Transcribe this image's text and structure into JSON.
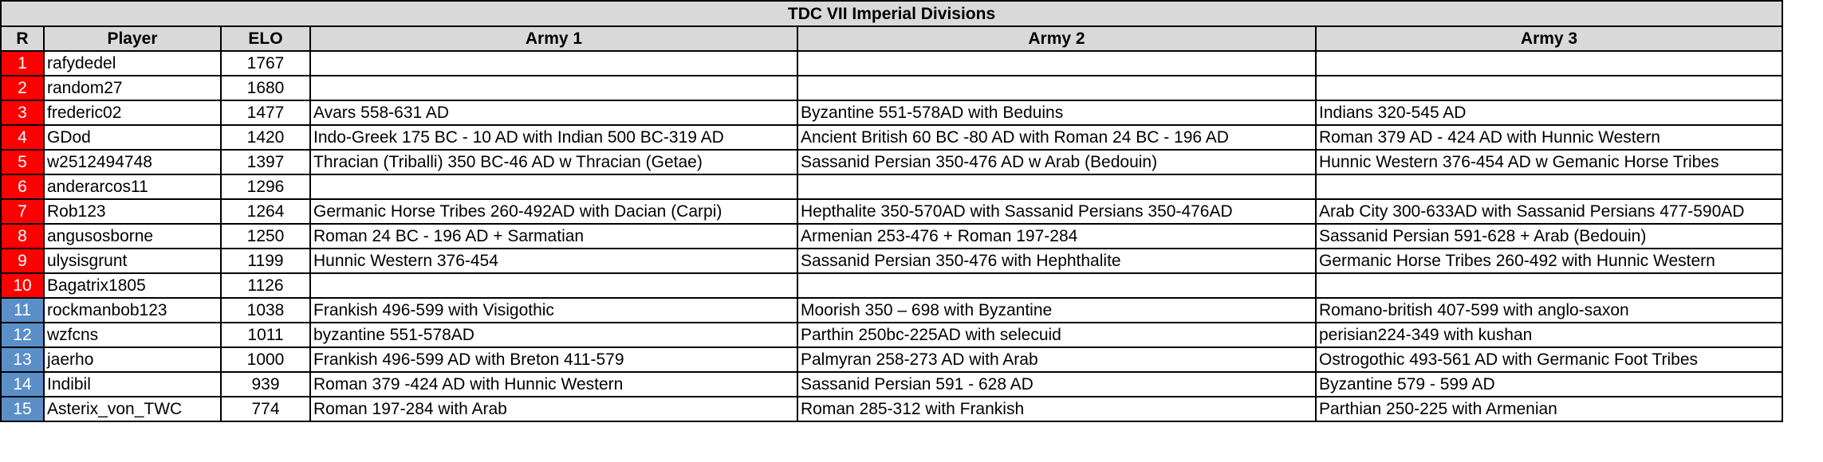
{
  "title": "TDC VII Imperial Divisions",
  "headers": {
    "rank": "R",
    "player": "Player",
    "elo": "ELO",
    "army1": "Army 1",
    "army2": "Army 2",
    "army3": "Army 3"
  },
  "colors": {
    "header_bg": "#d9d9d9",
    "rank_red": "#ff0000",
    "rank_blue": "#5b8fc8"
  },
  "rows": [
    {
      "rank": "1",
      "tier": "red",
      "player": "rafydedel",
      "elo": "1767",
      "army1": "",
      "army2": "",
      "army3": ""
    },
    {
      "rank": "2",
      "tier": "red",
      "player": "random27",
      "elo": "1680",
      "army1": "",
      "army2": "",
      "army3": ""
    },
    {
      "rank": "3",
      "tier": "red",
      "player": "frederic02",
      "elo": "1477",
      "army1": "Avars 558-631 AD",
      "army2": "Byzantine 551-578AD with Beduins",
      "army3": "Indians 320-545 AD"
    },
    {
      "rank": "4",
      "tier": "red",
      "player": "GDod",
      "elo": "1420",
      "army1": "Indo-Greek 175 BC - 10 AD with Indian 500 BC-319 AD",
      "army2": "Ancient British 60 BC -80 AD with Roman 24 BC - 196 AD",
      "army3": "Roman 379 AD - 424 AD with Hunnic Western"
    },
    {
      "rank": "5",
      "tier": "red",
      "player": "w2512494748",
      "elo": "1397",
      "army1": "Thracian (Triballi) 350 BC-46 AD w Thracian (Getae)",
      "army2": "Sassanid Persian 350-476 AD w Arab (Bedouin)",
      "army3": "Hunnic Western 376-454 AD w Gemanic Horse Tribes"
    },
    {
      "rank": "6",
      "tier": "red",
      "player": "anderarcos11",
      "elo": "1296",
      "army1": "",
      "army2": "",
      "army3": ""
    },
    {
      "rank": "7",
      "tier": "red",
      "player": "Rob123",
      "elo": "1264",
      "army1": "Germanic Horse Tribes 260-492AD with Dacian (Carpi)",
      "army2": "Hepthalite 350-570AD with Sassanid Persians 350-476AD",
      "army3": "Arab City 300-633AD with Sassanid Persians 477-590AD"
    },
    {
      "rank": "8",
      "tier": "red",
      "player": "angusosborne",
      "elo": "1250",
      "army1": "Roman 24 BC - 196 AD + Sarmatian",
      "army2": "Armenian 253-476 + Roman 197-284",
      "army3": "Sassanid Persian 591-628 + Arab (Bedouin)"
    },
    {
      "rank": "9",
      "tier": "red",
      "player": "ulysisgrunt",
      "elo": "1199",
      "army1": "Hunnic Western 376-454",
      "army2": "Sassanid Persian 350-476 with Hephthalite",
      "army3": "Germanic Horse Tribes 260-492 with Hunnic Western"
    },
    {
      "rank": "10",
      "tier": "red",
      "player": "Bagatrix1805",
      "elo": "1126",
      "army1": "",
      "army2": "",
      "army3": ""
    },
    {
      "rank": "11",
      "tier": "blue",
      "player": "rockmanbob123",
      "elo": "1038",
      "army1": "Frankish 496-599 with Visigothic",
      "army2": "Moorish 350 – 698 with Byzantine",
      "army3": "Romano-british 407-599 with anglo-saxon"
    },
    {
      "rank": "12",
      "tier": "blue",
      "player": "wzfcns",
      "elo": "1011",
      "army1": "byzantine 551-578AD",
      "army2": "Parthin 250bc-225AD with selecuid",
      "army3": "perisian224-349 with kushan"
    },
    {
      "rank": "13",
      "tier": "blue",
      "player": "jaerho",
      "elo": "1000",
      "army1": "Frankish 496-599 AD with Breton 411-579",
      "army2": "Palmyran 258-273 AD with Arab",
      "army3": "Ostrogothic 493-561 AD with Germanic Foot Tribes"
    },
    {
      "rank": "14",
      "tier": "blue",
      "player": "Indibil",
      "elo": "939",
      "army1": "Roman 379 -424 AD with Hunnic Western",
      "army2": "Sassanid Persian 591 - 628 AD",
      "army3": "Byzantine 579 - 599 AD"
    },
    {
      "rank": "15",
      "tier": "blue",
      "player": "Asterix_von_TWC",
      "elo": "774",
      "army1": "Roman 197-284 with Arab",
      "army2": "Roman 285-312 with Frankish",
      "army3": "Parthian 250-225 with Armenian"
    }
  ]
}
